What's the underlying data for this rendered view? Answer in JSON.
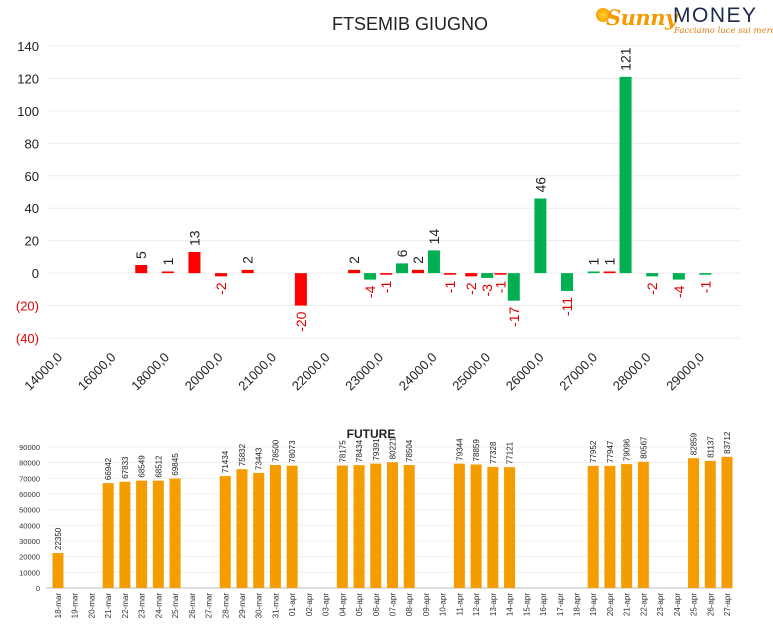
{
  "logo": {
    "brand_first": "Sunny",
    "brand_second": "MONEY",
    "tagline": "Facciamo luce sui mercati"
  },
  "colors": {
    "positive": "#00b050",
    "negative": "#ff0000",
    "future_bar": "#f59c00",
    "text": "#222222"
  },
  "chart_data": [
    {
      "type": "bar",
      "title": "FTSEMIB GIUGNO",
      "xlabel": "",
      "ylabel": "",
      "ylim": [
        -40,
        140
      ],
      "yticks": [
        "(40)",
        "(20)",
        "0",
        "20",
        "40",
        "60",
        "80",
        "100",
        "120",
        "140"
      ],
      "categories": [
        "14000,0",
        "16000,0",
        "18000,0",
        "20000,0",
        "21000,0",
        "22000,0",
        "23000,0",
        "24000,0",
        "25000,0",
        "26000,0",
        "27000,0",
        "28000,0",
        "29000,0"
      ],
      "bars": [
        {
          "label": "5",
          "value": 5,
          "color": "negative",
          "slot": 2
        },
        {
          "label": "1",
          "value": 1,
          "color": "negative",
          "slot": 3
        },
        {
          "label": "13",
          "value": 13,
          "color": "negative",
          "slot": 4
        },
        {
          "label": "-2",
          "value": -2,
          "color": "negative",
          "slot": 5
        },
        {
          "label": "2",
          "value": 2,
          "color": "negative",
          "slot": 6
        },
        {
          "label": "-20",
          "value": -20,
          "color": "negative",
          "slot": 8
        },
        {
          "label": "2",
          "value": 2,
          "color": "negative",
          "slot": 10
        },
        {
          "label": "-4",
          "value": -4,
          "color": "positive",
          "slot": 10.6
        },
        {
          "label": "-1",
          "value": -1,
          "color": "negative",
          "slot": 11.2
        },
        {
          "label": "6",
          "value": 6,
          "color": "positive",
          "slot": 11.8
        },
        {
          "label": "2",
          "value": 2,
          "color": "negative",
          "slot": 12.4
        },
        {
          "label": "14",
          "value": 14,
          "color": "positive",
          "slot": 13
        },
        {
          "label": "-1",
          "value": -1,
          "color": "negative",
          "slot": 13.6
        },
        {
          "label": "-2",
          "value": -2,
          "color": "negative",
          "slot": 14.4
        },
        {
          "label": "-3",
          "value": -3,
          "color": "positive",
          "slot": 15
        },
        {
          "label": "-1",
          "value": -1,
          "color": "negative",
          "slot": 15.5
        },
        {
          "label": "-17",
          "value": -17,
          "color": "positive",
          "slot": 16
        },
        {
          "label": "46",
          "value": 46,
          "color": "positive",
          "slot": 17
        },
        {
          "label": "-11",
          "value": -11,
          "color": "positive",
          "slot": 18
        },
        {
          "label": "1",
          "value": 1,
          "color": "positive",
          "slot": 19
        },
        {
          "label": "1",
          "value": 1,
          "color": "negative",
          "slot": 19.6
        },
        {
          "label": "121",
          "value": 121,
          "color": "positive",
          "slot": 20.2
        },
        {
          "label": "-2",
          "value": -2,
          "color": "positive",
          "slot": 21.2
        },
        {
          "label": "-4",
          "value": -4,
          "color": "positive",
          "slot": 22.2
        },
        {
          "label": "-1",
          "value": -1,
          "color": "positive",
          "slot": 23.2
        }
      ]
    },
    {
      "type": "bar",
      "title": "FUTURE",
      "xlabel": "",
      "ylabel": "",
      "ylim": [
        0,
        90000
      ],
      "yticks": [
        "0",
        "10000",
        "20000",
        "30000",
        "40000",
        "50000",
        "60000",
        "70000",
        "80000",
        "90000"
      ],
      "categories": [
        "18-mar",
        "19-mar",
        "20-mar",
        "21-mar",
        "22-mar",
        "23-mar",
        "24-mar",
        "25-mar",
        "26-mar",
        "27-mar",
        "28-mar",
        "29-mar",
        "30-mar",
        "31-mar",
        "01-apr",
        "02-apr",
        "03-apr",
        "04-apr",
        "05-apr",
        "06-apr",
        "07-apr",
        "08-apr",
        "09-apr",
        "10-apr",
        "11-apr",
        "12-apr",
        "13-apr",
        "14-apr",
        "15-apr",
        "16-apr",
        "17-apr",
        "18-apr",
        "19-apr",
        "20-apr",
        "21-apr",
        "22-apr",
        "23-apr",
        "24-apr",
        "25-apr",
        "26-apr",
        "27-apr"
      ],
      "values": [
        22350,
        null,
        null,
        66942,
        67833,
        68549,
        68512,
        69845,
        null,
        null,
        71434,
        75832,
        73443,
        78500,
        78073,
        null,
        null,
        78175,
        78434,
        79391,
        80221,
        78504,
        null,
        null,
        79344,
        78859,
        77328,
        77121,
        null,
        null,
        null,
        null,
        77952,
        77947,
        79096,
        80567,
        null,
        null,
        82859,
        81137,
        83712
      ],
      "labels": [
        "22350",
        null,
        null,
        "66942",
        "67833",
        "68549",
        "68512",
        "69845",
        null,
        null,
        "71434",
        "75832",
        "73443",
        "78500",
        "78073",
        null,
        null,
        "78175",
        "78434",
        "79391",
        "80221",
        "78504",
        null,
        null,
        "79344",
        "78859",
        "77328",
        "77121",
        null,
        null,
        null,
        null,
        "77952",
        "77947",
        "79096",
        "80567",
        null,
        null,
        "82859",
        "81137",
        "83712"
      ]
    }
  ]
}
